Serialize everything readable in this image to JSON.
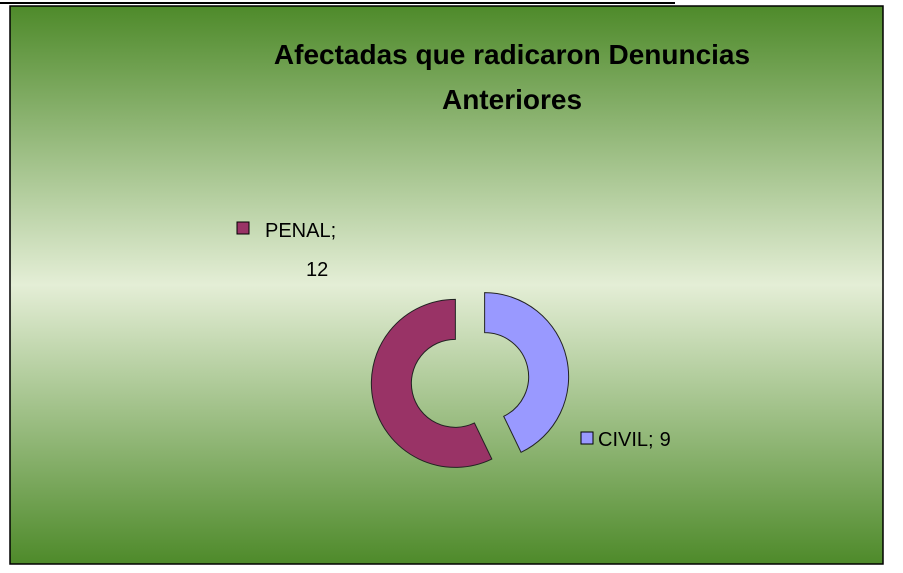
{
  "chart_data": {
    "type": "donut",
    "title": "Afectadas que radicaron Denuncias Anteriores",
    "categories": [
      "CIVIL",
      "PENAL"
    ],
    "values": [
      9,
      12
    ],
    "colors": [
      "#9999FF",
      "#993366"
    ],
    "label_separator": ";"
  }
}
